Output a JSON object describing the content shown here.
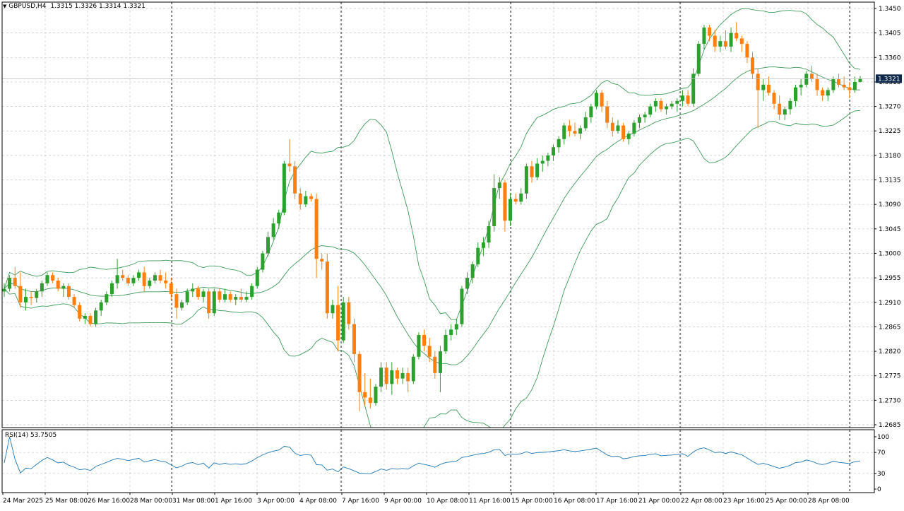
{
  "header": {
    "symbol_label": "GBPUSD,H4",
    "ohlc": "1.3315 1.3326 1.3314 1.3321"
  },
  "price_axis": {
    "ticks": [
      "1.3450",
      "1.3405",
      "1.3360",
      "1.3315",
      "1.3270",
      "1.3225",
      "1.3180",
      "1.3135",
      "1.3090",
      "1.3045",
      "1.3000",
      "1.2955",
      "1.2910",
      "1.2865",
      "1.2820",
      "1.2775",
      "1.2730",
      "1.2685"
    ],
    "current_price": "1.3321"
  },
  "rsi_panel": {
    "label": "RSI(14) 53.7505",
    "levels": [
      "100",
      "70",
      "30",
      "0"
    ]
  },
  "time_axis": {
    "labels": [
      "24 Mar 2025",
      "25 Mar 08:00",
      "26 Mar 16:00",
      "28 Mar 00:00",
      "31 Mar 08:00",
      "1 Apr 16:00",
      "3 Apr 00:00",
      "4 Apr 08:00",
      "7 Apr 16:00",
      "9 Apr 00:00",
      "10 Apr 08:00",
      "11 Apr 16:00",
      "15 Apr 00:00",
      "16 Apr 08:00",
      "17 Apr 16:00",
      "21 Apr 00:00",
      "22 Apr 08:00",
      "23 Apr 16:00",
      "25 Apr 00:00",
      "28 Apr 08:00"
    ]
  },
  "colors": {
    "bull": "#2ca02c",
    "bear": "#ff7f0e",
    "bands": "#3f9a5a",
    "rsi_line": "#1f77b4",
    "grid": "#c8c8c8",
    "frame": "#000000"
  },
  "chart_data": {
    "type": "candlestick",
    "symbol": "GBPUSD",
    "timeframe": "H4",
    "indicators": [
      "Bollinger Bands",
      "RSI(14)"
    ],
    "ylim": [
      1.2685,
      1.345
    ],
    "rsi_ylim": [
      0,
      100
    ],
    "rsi_levels": [
      70,
      30
    ],
    "rsi_last": 53.7505,
    "candles": [
      [
        1.293,
        1.2945,
        1.292,
        1.2935
      ],
      [
        1.2935,
        1.296,
        1.293,
        1.2955
      ],
      [
        1.2955,
        1.2975,
        1.2935,
        1.294
      ],
      [
        1.294,
        1.2965,
        1.29,
        1.291
      ],
      [
        1.291,
        1.2935,
        1.2895,
        1.292
      ],
      [
        1.292,
        1.293,
        1.2905,
        1.2918
      ],
      [
        1.2918,
        1.2935,
        1.291,
        1.293
      ],
      [
        1.293,
        1.295,
        1.292,
        1.2945
      ],
      [
        1.2945,
        1.2965,
        1.294,
        1.296
      ],
      [
        1.296,
        1.2965,
        1.2945,
        1.295
      ],
      [
        1.295,
        1.2955,
        1.293,
        1.2935
      ],
      [
        1.2935,
        1.2945,
        1.292,
        1.294
      ],
      [
        1.294,
        1.2945,
        1.2915,
        1.292
      ],
      [
        1.292,
        1.2925,
        1.29,
        1.2905
      ],
      [
        1.2905,
        1.291,
        1.2875,
        1.288
      ],
      [
        1.288,
        1.289,
        1.287,
        1.2885
      ],
      [
        1.2885,
        1.289,
        1.2865,
        1.287
      ],
      [
        1.287,
        1.29,
        1.2865,
        1.2895
      ],
      [
        1.2895,
        1.2915,
        1.2885,
        1.291
      ],
      [
        1.291,
        1.293,
        1.2905,
        1.2925
      ],
      [
        1.2925,
        1.295,
        1.292,
        1.2945
      ],
      [
        1.2945,
        1.299,
        1.2935,
        1.296
      ],
      [
        1.296,
        1.297,
        1.295,
        1.2955
      ],
      [
        1.2955,
        1.296,
        1.294,
        1.2945
      ],
      [
        1.2945,
        1.296,
        1.294,
        1.2955
      ],
      [
        1.2955,
        1.297,
        1.295,
        1.2965
      ],
      [
        1.2965,
        1.2975,
        1.293,
        1.294
      ],
      [
        1.294,
        1.2955,
        1.2935,
        1.295
      ],
      [
        1.295,
        1.2965,
        1.2945,
        1.296
      ],
      [
        1.296,
        1.297,
        1.2945,
        1.295
      ],
      [
        1.295,
        1.2965,
        1.2935,
        1.2945
      ],
      [
        1.2945,
        1.2955,
        1.2915,
        1.2925
      ],
      [
        1.2925,
        1.2935,
        1.288,
        1.29
      ],
      [
        1.29,
        1.2915,
        1.2895,
        1.291
      ],
      [
        1.291,
        1.2935,
        1.2905,
        1.293
      ],
      [
        1.293,
        1.2945,
        1.292,
        1.2935
      ],
      [
        1.2935,
        1.294,
        1.2915,
        1.292
      ],
      [
        1.292,
        1.2935,
        1.291,
        1.293
      ],
      [
        1.293,
        1.2935,
        1.288,
        1.289
      ],
      [
        1.289,
        1.2935,
        1.2885,
        1.293
      ],
      [
        1.293,
        1.2935,
        1.291,
        1.2915
      ],
      [
        1.2915,
        1.2935,
        1.291,
        1.2925
      ],
      [
        1.2925,
        1.293,
        1.291,
        1.2915
      ],
      [
        1.2915,
        1.2925,
        1.2905,
        1.292
      ],
      [
        1.292,
        1.2935,
        1.291,
        1.2915
      ],
      [
        1.2915,
        1.293,
        1.291,
        1.292
      ],
      [
        1.292,
        1.2945,
        1.2915,
        1.294
      ],
      [
        1.294,
        1.2975,
        1.2935,
        1.297
      ],
      [
        1.297,
        1.3005,
        1.2965,
        1.3
      ],
      [
        1.3,
        1.304,
        1.2995,
        1.303
      ],
      [
        1.303,
        1.3065,
        1.3025,
        1.3055
      ],
      [
        1.3055,
        1.308,
        1.3045,
        1.3075
      ],
      [
        1.3075,
        1.317,
        1.307,
        1.3165
      ],
      [
        1.3165,
        1.321,
        1.315,
        1.316
      ],
      [
        1.316,
        1.317,
        1.31,
        1.311
      ],
      [
        1.311,
        1.312,
        1.308,
        1.309
      ],
      [
        1.309,
        1.3115,
        1.3085,
        1.3105
      ],
      [
        1.3105,
        1.311,
        1.3095,
        1.31
      ],
      [
        1.31,
        1.311,
        1.2955,
        1.299
      ],
      [
        1.299,
        1.3,
        1.297,
        1.2985
      ],
      [
        1.2985,
        1.3,
        1.288,
        1.289
      ],
      [
        1.289,
        1.2915,
        1.288,
        1.2905
      ],
      [
        1.2905,
        1.294,
        1.282,
        1.284
      ],
      [
        1.284,
        1.292,
        1.2835,
        1.291
      ],
      [
        1.291,
        1.292,
        1.286,
        1.287
      ],
      [
        1.287,
        1.288,
        1.28,
        1.2815
      ],
      [
        1.2815,
        1.282,
        1.271,
        1.2745
      ],
      [
        1.2745,
        1.278,
        1.272,
        1.2735
      ],
      [
        1.2735,
        1.277,
        1.2715,
        1.2725
      ],
      [
        1.2725,
        1.276,
        1.272,
        1.2755
      ],
      [
        1.2755,
        1.28,
        1.2745,
        1.279
      ],
      [
        1.279,
        1.28,
        1.275,
        1.276
      ],
      [
        1.276,
        1.28,
        1.274,
        1.2785
      ],
      [
        1.2785,
        1.279,
        1.276,
        1.277
      ],
      [
        1.277,
        1.279,
        1.276,
        1.278
      ],
      [
        1.278,
        1.279,
        1.2745,
        1.2765
      ],
      [
        1.2765,
        1.2815,
        1.276,
        1.281
      ],
      [
        1.281,
        1.2855,
        1.2805,
        1.285
      ],
      [
        1.285,
        1.286,
        1.282,
        1.283
      ],
      [
        1.283,
        1.2845,
        1.28,
        1.281
      ],
      [
        1.281,
        1.282,
        1.277,
        1.278
      ],
      [
        1.278,
        1.283,
        1.2745,
        1.282
      ],
      [
        1.282,
        1.286,
        1.2815,
        1.285
      ],
      [
        1.285,
        1.287,
        1.284,
        1.286
      ],
      [
        1.286,
        1.288,
        1.285,
        1.287
      ],
      [
        1.287,
        1.294,
        1.2865,
        1.2935
      ],
      [
        1.2935,
        1.2965,
        1.2925,
        1.2955
      ],
      [
        1.2955,
        1.2985,
        1.2945,
        1.298
      ],
      [
        1.298,
        1.302,
        1.2975,
        1.301
      ],
      [
        1.301,
        1.303,
        1.2995,
        1.302
      ],
      [
        1.302,
        1.306,
        1.301,
        1.305
      ],
      [
        1.305,
        1.3145,
        1.304,
        1.312
      ],
      [
        1.312,
        1.314,
        1.31,
        1.313
      ],
      [
        1.313,
        1.3135,
        1.304,
        1.306
      ],
      [
        1.306,
        1.311,
        1.305,
        1.31
      ],
      [
        1.31,
        1.311,
        1.309,
        1.3095
      ],
      [
        1.3095,
        1.312,
        1.309,
        1.311
      ],
      [
        1.311,
        1.3165,
        1.31,
        1.316
      ],
      [
        1.316,
        1.317,
        1.313,
        1.314
      ],
      [
        1.314,
        1.3175,
        1.3135,
        1.3165
      ],
      [
        1.3165,
        1.318,
        1.315,
        1.317
      ],
      [
        1.317,
        1.3185,
        1.316,
        1.318
      ],
      [
        1.318,
        1.32,
        1.317,
        1.3195
      ],
      [
        1.3195,
        1.3215,
        1.3185,
        1.321
      ],
      [
        1.321,
        1.324,
        1.32,
        1.3235
      ],
      [
        1.3235,
        1.3245,
        1.3215,
        1.3225
      ],
      [
        1.3225,
        1.324,
        1.3215,
        1.322
      ],
      [
        1.322,
        1.3235,
        1.321,
        1.323
      ],
      [
        1.323,
        1.326,
        1.3225,
        1.325
      ],
      [
        1.325,
        1.3275,
        1.324,
        1.327
      ],
      [
        1.327,
        1.33,
        1.3265,
        1.3295
      ],
      [
        1.3295,
        1.33,
        1.326,
        1.327
      ],
      [
        1.327,
        1.328,
        1.323,
        1.324
      ],
      [
        1.324,
        1.325,
        1.3215,
        1.3225
      ],
      [
        1.3225,
        1.3245,
        1.322,
        1.3235
      ],
      [
        1.3235,
        1.324,
        1.3205,
        1.321
      ],
      [
        1.321,
        1.3225,
        1.32,
        1.322
      ],
      [
        1.322,
        1.3245,
        1.3215,
        1.324
      ],
      [
        1.324,
        1.3255,
        1.323,
        1.325
      ],
      [
        1.325,
        1.326,
        1.324,
        1.3255
      ],
      [
        1.3255,
        1.3275,
        1.325,
        1.327
      ],
      [
        1.327,
        1.3285,
        1.326,
        1.328
      ],
      [
        1.328,
        1.3285,
        1.326,
        1.3265
      ],
      [
        1.3265,
        1.3275,
        1.3255,
        1.327
      ],
      [
        1.327,
        1.328,
        1.3265,
        1.3275
      ],
      [
        1.3275,
        1.3285,
        1.326,
        1.328
      ],
      [
        1.328,
        1.33,
        1.327,
        1.329
      ],
      [
        1.329,
        1.33,
        1.327,
        1.3275
      ],
      [
        1.3275,
        1.334,
        1.327,
        1.333
      ],
      [
        1.333,
        1.339,
        1.3325,
        1.3385
      ],
      [
        1.3385,
        1.342,
        1.3375,
        1.3415
      ],
      [
        1.3415,
        1.342,
        1.339,
        1.34
      ],
      [
        1.34,
        1.341,
        1.337,
        1.338
      ],
      [
        1.338,
        1.34,
        1.337,
        1.339
      ],
      [
        1.339,
        1.341,
        1.3375,
        1.338
      ],
      [
        1.338,
        1.3415,
        1.337,
        1.3405
      ],
      [
        1.3405,
        1.3425,
        1.339,
        1.3395
      ],
      [
        1.3395,
        1.34,
        1.337,
        1.3385
      ],
      [
        1.3385,
        1.339,
        1.335,
        1.336
      ],
      [
        1.336,
        1.337,
        1.332,
        1.333
      ],
      [
        1.333,
        1.334,
        1.323,
        1.33
      ],
      [
        1.33,
        1.332,
        1.328,
        1.331
      ],
      [
        1.331,
        1.3325,
        1.329,
        1.3295
      ],
      [
        1.3295,
        1.33,
        1.3265,
        1.3275
      ],
      [
        1.3275,
        1.329,
        1.3245,
        1.3255
      ],
      [
        1.3255,
        1.327,
        1.3245,
        1.3265
      ],
      [
        1.3265,
        1.3285,
        1.3255,
        1.328
      ],
      [
        1.328,
        1.331,
        1.327,
        1.3305
      ],
      [
        1.3305,
        1.332,
        1.329,
        1.331
      ],
      [
        1.331,
        1.3335,
        1.3305,
        1.333
      ],
      [
        1.333,
        1.3345,
        1.3315,
        1.332
      ],
      [
        1.332,
        1.333,
        1.329,
        1.33
      ],
      [
        1.33,
        1.3305,
        1.328,
        1.329
      ],
      [
        1.329,
        1.3305,
        1.328,
        1.33
      ],
      [
        1.33,
        1.3325,
        1.3295,
        1.332
      ],
      [
        1.332,
        1.333,
        1.3305,
        1.331
      ],
      [
        1.331,
        1.3325,
        1.33,
        1.3305
      ],
      [
        1.3305,
        1.3315,
        1.3285,
        1.33
      ],
      [
        1.33,
        1.3325,
        1.3295,
        1.3315
      ],
      [
        1.3315,
        1.3326,
        1.3314,
        1.3321
      ]
    ],
    "candle_format": [
      "open",
      "high",
      "low",
      "close"
    ]
  }
}
